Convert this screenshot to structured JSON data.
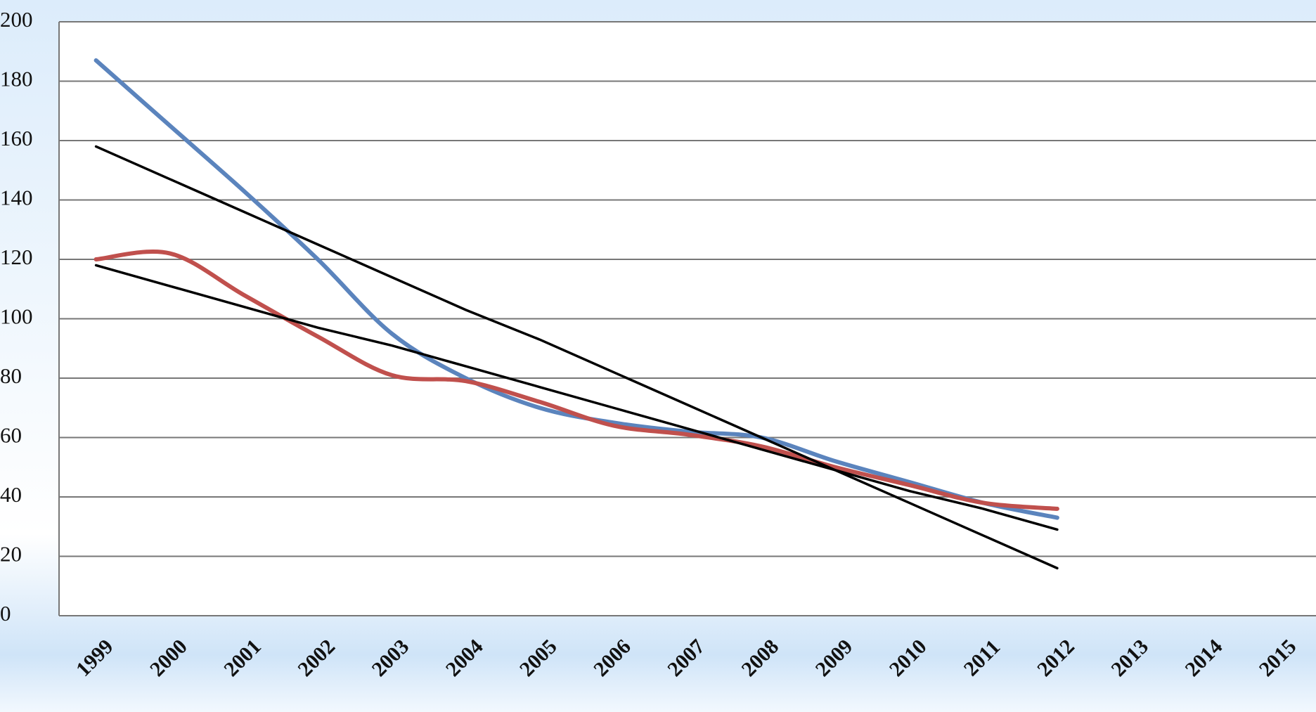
{
  "chart_data": {
    "type": "line",
    "categories": [
      "1999",
      "2000",
      "2001",
      "2002",
      "2003",
      "2004",
      "2005",
      "2006",
      "2007",
      "2008",
      "2009",
      "2010",
      "2011",
      "2012",
      "2013",
      "2014",
      "2015"
    ],
    "series": [
      {
        "color": "#5b84bd",
        "smooth": true,
        "values": [
          187,
          165,
          143,
          120,
          95,
          80,
          70,
          65,
          62,
          60,
          52,
          45,
          38,
          33,
          null,
          null,
          null
        ]
      },
      {
        "color": "#c0504d",
        "smooth": true,
        "values": [
          120,
          122,
          108,
          94,
          81,
          79,
          72,
          64,
          61,
          57,
          50,
          44,
          38,
          36,
          null,
          null,
          null
        ]
      },
      {
        "color": "#000000",
        "smooth": false,
        "values": [
          158,
          147,
          136,
          125,
          114,
          103,
          93,
          82,
          71,
          60,
          49,
          38,
          27,
          16,
          null,
          null,
          null
        ]
      },
      {
        "color": "#000000",
        "smooth": false,
        "values": [
          118,
          111,
          104,
          97,
          91,
          84,
          77,
          70,
          63,
          56,
          49,
          42,
          36,
          29,
          null,
          null,
          null
        ]
      }
    ],
    "ylim": [
      0,
      200
    ],
    "yticks": [
      0,
      20,
      40,
      60,
      80,
      100,
      120,
      140,
      160,
      180,
      200
    ],
    "grid": true
  }
}
